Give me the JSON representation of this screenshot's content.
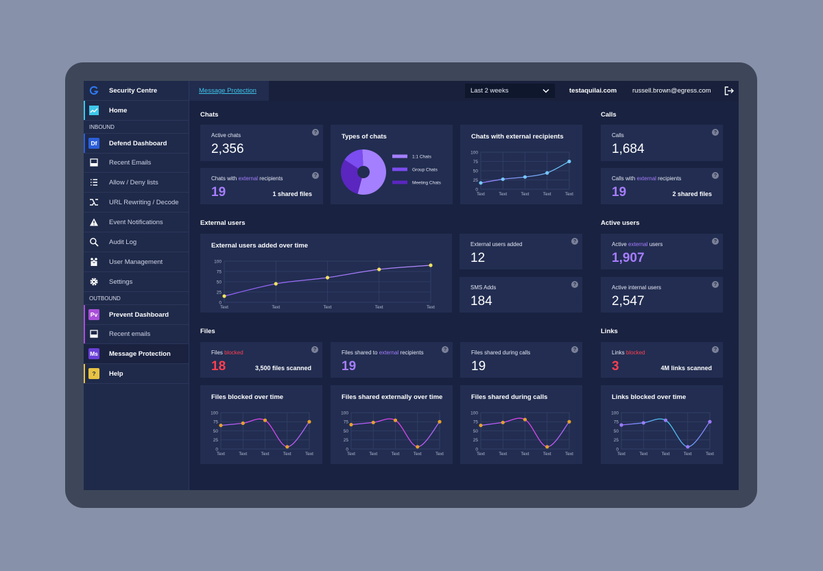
{
  "sidebar": {
    "brand": "Security Centre",
    "home": "Home",
    "inbound": {
      "heading": "INBOUND",
      "items": [
        {
          "badge": "Df",
          "label": "Defend Dashboard"
        },
        {
          "label": "Recent Emails"
        },
        {
          "label": "Allow / Deny lists"
        },
        {
          "label": "URL Rewriting / Decode"
        },
        {
          "label": "Event Notifications"
        },
        {
          "label": "Audit Log"
        },
        {
          "label": "User Management"
        },
        {
          "label": "Settings"
        }
      ]
    },
    "outbound": {
      "heading": "OUTBOUND",
      "items": [
        {
          "badge": "Pv",
          "label": "Prevent Dashboard"
        },
        {
          "label": "Recent emails"
        },
        {
          "badge": "Ms",
          "label": "Message Protection"
        },
        {
          "badge": "?",
          "label": "Help"
        }
      ]
    }
  },
  "topbar": {
    "tab": "Message Protection",
    "range": "Last 2 weeks",
    "domain": "testaquilai.com",
    "user": "russell.brown@egress.com"
  },
  "help_icon": "?",
  "sections": {
    "chats": "Chats",
    "calls": "Calls",
    "external_users": "External users",
    "active_users": "Active users",
    "files": "Files",
    "links": "Links"
  },
  "cards": {
    "active_chats": {
      "label": [
        "Active chats"
      ],
      "value": "2,356"
    },
    "chats_external": {
      "label": [
        "Chats with",
        "external",
        "recipients"
      ],
      "value": "19",
      "note": "1 shared files"
    },
    "calls": {
      "label": [
        "Calls"
      ],
      "value": "1,684"
    },
    "calls_external": {
      "label": [
        "Calls with",
        "external",
        "recipients"
      ],
      "value": "19",
      "note": "2 shared files"
    },
    "external_added": {
      "label": [
        "External users added"
      ],
      "value": "12"
    },
    "sms_adds": {
      "label": [
        "SMS Adds"
      ],
      "value": "184"
    },
    "active_external": {
      "label": [
        "Active",
        "external",
        "users"
      ],
      "value": "1,907"
    },
    "active_internal": {
      "label": [
        "Active internal users"
      ],
      "value": "2,547"
    },
    "files_blocked": {
      "label": [
        "Files",
        "blocked"
      ],
      "value": "18",
      "note": "3,500 files scanned"
    },
    "files_shared_external": {
      "label": [
        "Files shared to",
        "external",
        "recipients"
      ],
      "value": "19"
    },
    "files_calls": {
      "label": [
        "Files shared during calls"
      ],
      "value": "19"
    },
    "links_blocked": {
      "label": [
        "Links",
        "blocked"
      ],
      "value": "3",
      "note": "4M links scanned"
    }
  },
  "chart_data": [
    {
      "type": "pie",
      "title": "Types of chats",
      "categories": [
        "1:1 Chats",
        "Group Chats",
        "Meeting Chats"
      ],
      "values": [
        55,
        15,
        30
      ],
      "colors": [
        "#a47fff",
        "#7b4cf0",
        "#5a26bf"
      ]
    },
    {
      "type": "line",
      "title": "Chats with external recipients",
      "categories": [
        "Text",
        "Text",
        "Text",
        "Text",
        "Text"
      ],
      "values": [
        17,
        27,
        33,
        44,
        75
      ],
      "ylim": [
        0,
        100
      ],
      "yticks": [
        0,
        25,
        50,
        75,
        100
      ],
      "grid": true,
      "line_colors": [
        "#9a7bff",
        "#62c9f2"
      ],
      "point_color": "#72c8ff"
    },
    {
      "type": "line",
      "title": "External users added over time",
      "categories": [
        "Text",
        "Text",
        "Text",
        "Text",
        "Text"
      ],
      "values": [
        15,
        45,
        60,
        80,
        90
      ],
      "ylim": [
        0,
        100
      ],
      "yticks": [
        0,
        25,
        50,
        75,
        100
      ],
      "grid": true,
      "line_colors": [
        "#8d5cf6",
        "#b58cff"
      ],
      "point_color": "#f2e35c"
    },
    {
      "type": "line",
      "title": "Files blocked over time",
      "categories": [
        "Text",
        "Text",
        "Text",
        "Text",
        "Text"
      ],
      "values": [
        65,
        71,
        79,
        6,
        75
      ],
      "ylim": [
        0,
        100
      ],
      "yticks": [
        0,
        25,
        50,
        75,
        100
      ],
      "grid": true,
      "line_colors": [
        "#a76cff",
        "#e63ce6",
        "#a76cff"
      ],
      "point_color": "#e6a02c"
    },
    {
      "type": "line",
      "title": "Files shared externally over time",
      "categories": [
        "Text",
        "Text",
        "Text",
        "Text",
        "Text"
      ],
      "values": [
        67,
        73,
        79,
        6,
        75
      ],
      "ylim": [
        0,
        100
      ],
      "yticks": [
        0,
        25,
        50,
        75,
        100
      ],
      "grid": true,
      "line_colors": [
        "#a76cff",
        "#e63ce6",
        "#a76cff"
      ],
      "point_color": "#e6a02c"
    },
    {
      "type": "line",
      "title": "Files shared during calls",
      "categories": [
        "Text",
        "Text",
        "Text",
        "Text",
        "Text"
      ],
      "values": [
        65,
        73,
        81,
        6,
        75
      ],
      "ylim": [
        0,
        100
      ],
      "yticks": [
        0,
        25,
        50,
        75,
        100
      ],
      "grid": true,
      "line_colors": [
        "#a76cff",
        "#e63ce6",
        "#a76cff"
      ],
      "point_color": "#e6a02c"
    },
    {
      "type": "line",
      "title": "Links blocked over time",
      "categories": [
        "Text",
        "Text",
        "Text",
        "Text",
        "Text"
      ],
      "values": [
        66,
        72,
        79,
        6,
        75
      ],
      "ylim": [
        0,
        100
      ],
      "yticks": [
        0,
        25,
        50,
        75,
        100
      ],
      "grid": true,
      "line_colors": [
        "#9a6bff",
        "#41d0f2",
        "#8f7bff"
      ],
      "point_color": "#9a7bff"
    }
  ]
}
